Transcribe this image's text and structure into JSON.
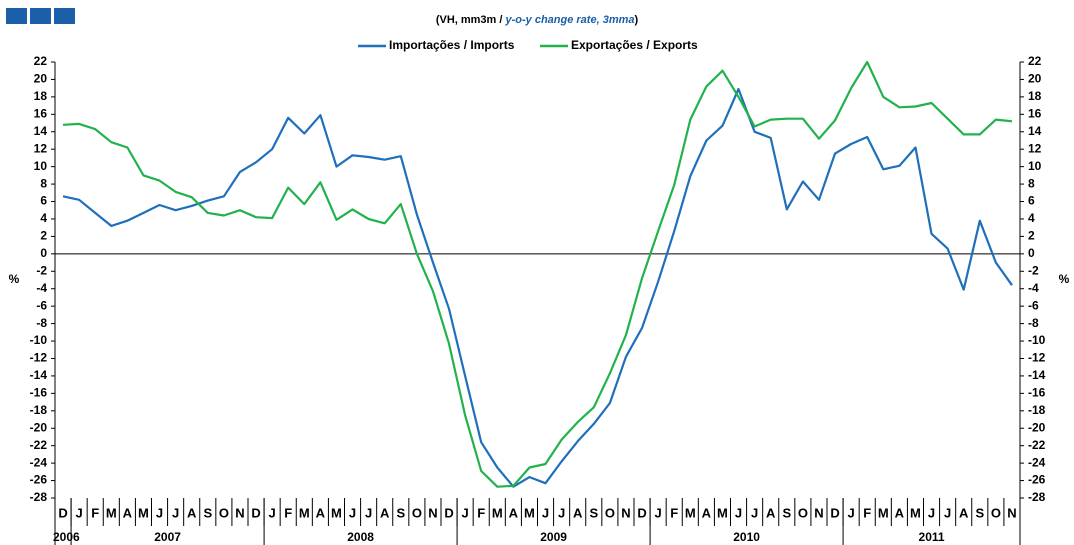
{
  "chart_data": {
    "type": "line",
    "subtitle": "(VH, mm3m / ",
    "subtitle_italic": "y-o-y change rate, 3mma",
    "subtitle_end": ")",
    "y_label": "%",
    "y2_label": "%",
    "categories": [
      "D",
      "J",
      "F",
      "M",
      "A",
      "M",
      "J",
      "J",
      "A",
      "S",
      "O",
      "N",
      "D",
      "J",
      "F",
      "M",
      "A",
      "M",
      "J",
      "J",
      "A",
      "S",
      "O",
      "N",
      "D",
      "J",
      "F",
      "M",
      "A",
      "M",
      "J",
      "J",
      "A",
      "S",
      "O",
      "N",
      "D",
      "J",
      "F",
      "M",
      "A",
      "M",
      "J",
      "J",
      "A",
      "S",
      "O",
      "N",
      "D",
      "J",
      "F",
      "M",
      "A",
      "M",
      "J",
      "J",
      "A",
      "S",
      "O",
      "N"
    ],
    "years": [
      "2006",
      "2007",
      "2008",
      "2009",
      "2010",
      "2011"
    ],
    "series": [
      {
        "name": "Importações / Imports",
        "color": "#1f6fba",
        "values": [
          6.6,
          6.2,
          4.7,
          3.2,
          3.8,
          4.7,
          5.6,
          5.0,
          5.5,
          6.1,
          6.6,
          9.4,
          10.5,
          12.0,
          15.6,
          13.8,
          15.9,
          10.0,
          11.3,
          11.1,
          10.8,
          11.2,
          4.5,
          -1.0,
          -6.3,
          -14.0,
          -21.6,
          -24.5,
          -26.7,
          -25.6,
          -26.3,
          -23.8,
          -21.5,
          -19.5,
          -17.1,
          -11.8,
          -8.5,
          -3.2,
          2.6,
          8.9,
          13.0,
          14.7,
          18.9,
          14.0,
          13.3,
          5.1,
          8.3,
          6.2,
          11.5,
          12.6,
          13.4,
          9.7,
          10.1,
          12.2,
          2.3,
          0.6,
          -4.1,
          3.8,
          -1.0,
          -3.6
        ]
      },
      {
        "name": "Exportações / Exports",
        "color": "#22b24c",
        "values": [
          14.8,
          14.9,
          14.3,
          12.8,
          12.2,
          9.0,
          8.4,
          7.1,
          6.5,
          4.7,
          4.4,
          5.0,
          4.2,
          4.1,
          7.6,
          5.7,
          8.2,
          3.9,
          5.1,
          4.0,
          3.5,
          5.7,
          0.0,
          -4.3,
          -10.3,
          -18.5,
          -24.9,
          -26.7,
          -26.6,
          -24.5,
          -24.1,
          -21.3,
          -19.3,
          -17.6,
          -13.7,
          -9.3,
          -2.8,
          2.6,
          7.9,
          15.4,
          19.2,
          21.0,
          18.0,
          14.6,
          15.4,
          15.5,
          15.5,
          13.2,
          15.3,
          19.0,
          22.0,
          18.0,
          16.8,
          16.9,
          17.3,
          15.5,
          13.7,
          13.7,
          15.4,
          15.2
        ]
      }
    ],
    "ylim": [
      -28,
      22
    ],
    "yticks": [
      -28,
      -26,
      -24,
      -22,
      -20,
      -18,
      -16,
      -14,
      -12,
      -10,
      -8,
      -6,
      -4,
      -2,
      0,
      2,
      4,
      6,
      8,
      10,
      12,
      14,
      16,
      18,
      20,
      22
    ],
    "y2lim": [
      -28,
      22
    ],
    "y2ticks": [
      -28,
      -26,
      -24,
      -22,
      -20,
      -18,
      -16,
      -14,
      -12,
      -10,
      -8,
      -6,
      -4,
      -2,
      0,
      2,
      4,
      6,
      8,
      10,
      12,
      14,
      16,
      18,
      20,
      22
    ],
    "grid": false
  }
}
